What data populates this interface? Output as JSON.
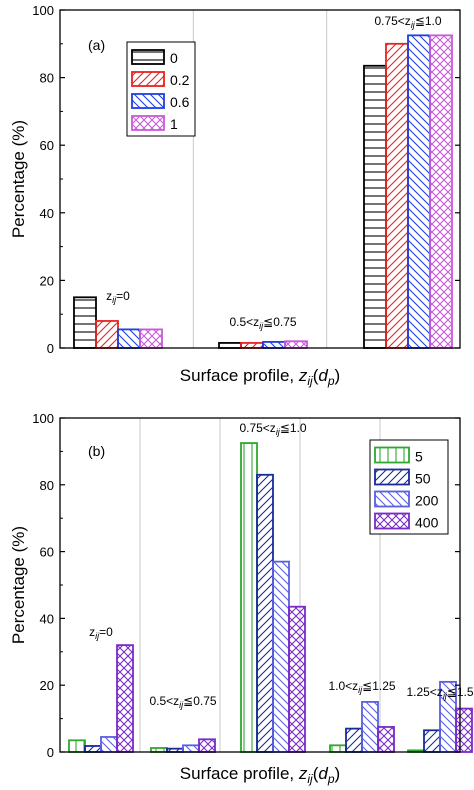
{
  "chart_data": [
    {
      "type": "bar",
      "panel_label": "(a)",
      "categories": [
        "0",
        "0.5-0.75",
        "0.75-1.0"
      ],
      "series": [
        {
          "name": "0",
          "values": [
            15,
            1.5,
            83.5
          ]
        },
        {
          "name": "0.2",
          "values": [
            8,
            1.5,
            90
          ]
        },
        {
          "name": "0.6",
          "values": [
            5.5,
            1.8,
            92.5
          ]
        },
        {
          "name": "1",
          "values": [
            5.5,
            2,
            92.5
          ]
        }
      ],
      "series_colors": [
        "#000000",
        "#e8231f",
        "#1f3fe0",
        "#c85ad8"
      ],
      "series_patterns": [
        "horizontal",
        "diag-up",
        "diag-down",
        "crosshatch"
      ],
      "ylim": [
        0,
        100
      ],
      "yticks": [
        "0",
        "20",
        "40",
        "60",
        "80",
        "100"
      ],
      "ylabel": "Percentage (%)",
      "xlabel": {
        "main": "Surface profile, ",
        "z": "z",
        "sub": "ij",
        "open": "(",
        "d": "d",
        "dsub": "p",
        "close": ")"
      },
      "legend_placement": "top-left",
      "annotations": [
        {
          "prefix": "z",
          "sub": "ij",
          "suffix": "=0"
        },
        {
          "prefix": "0.5<z",
          "sub": "ij",
          "suffix": "≦0.75"
        },
        {
          "prefix": "0.75<z",
          "sub": "ij",
          "suffix": "≦1.0"
        }
      ]
    },
    {
      "type": "bar",
      "panel_label": "(b)",
      "categories": [
        "0",
        "0.5-0.75",
        "0.75-1.0",
        "1.0-1.25",
        "1.25-1.5"
      ],
      "series": [
        {
          "name": "5",
          "values": [
            3.5,
            1.2,
            92.5,
            2,
            0.5
          ]
        },
        {
          "name": "50",
          "values": [
            1.8,
            1,
            83,
            7,
            6.5
          ]
        },
        {
          "name": "200",
          "values": [
            4.5,
            2,
            57,
            15,
            21
          ]
        },
        {
          "name": "400",
          "values": [
            32,
            3.8,
            43.5,
            7.5,
            13
          ]
        }
      ],
      "series_colors": [
        "#2ea82e",
        "#1a2a9a",
        "#5a5fe0",
        "#7a2ac8"
      ],
      "series_patterns": [
        "vertical",
        "diag-up",
        "diag-down",
        "crosshatch"
      ],
      "ylim": [
        0,
        100
      ],
      "yticks": [
        "0",
        "20",
        "40",
        "60",
        "80",
        "100"
      ],
      "ylabel": "Percentage (%)",
      "xlabel": {
        "main": "Surface profile, ",
        "z": "z",
        "sub": "ij",
        "open": "(",
        "d": "d",
        "dsub": "p",
        "close": ")"
      },
      "legend_placement": "top-right",
      "annotations": [
        {
          "prefix": "z",
          "sub": "ij",
          "suffix": "=0"
        },
        {
          "prefix": "0.5<z",
          "sub": "ij",
          "suffix": "≦0.75"
        },
        {
          "prefix": "0.75<z",
          "sub": "ij",
          "suffix": "≦1.0"
        },
        {
          "prefix": "1.0<z",
          "sub": "ij",
          "suffix": "≦1.25"
        },
        {
          "prefix": "1.25<z",
          "sub": "ij",
          "suffix": "≦1.5"
        }
      ]
    }
  ]
}
